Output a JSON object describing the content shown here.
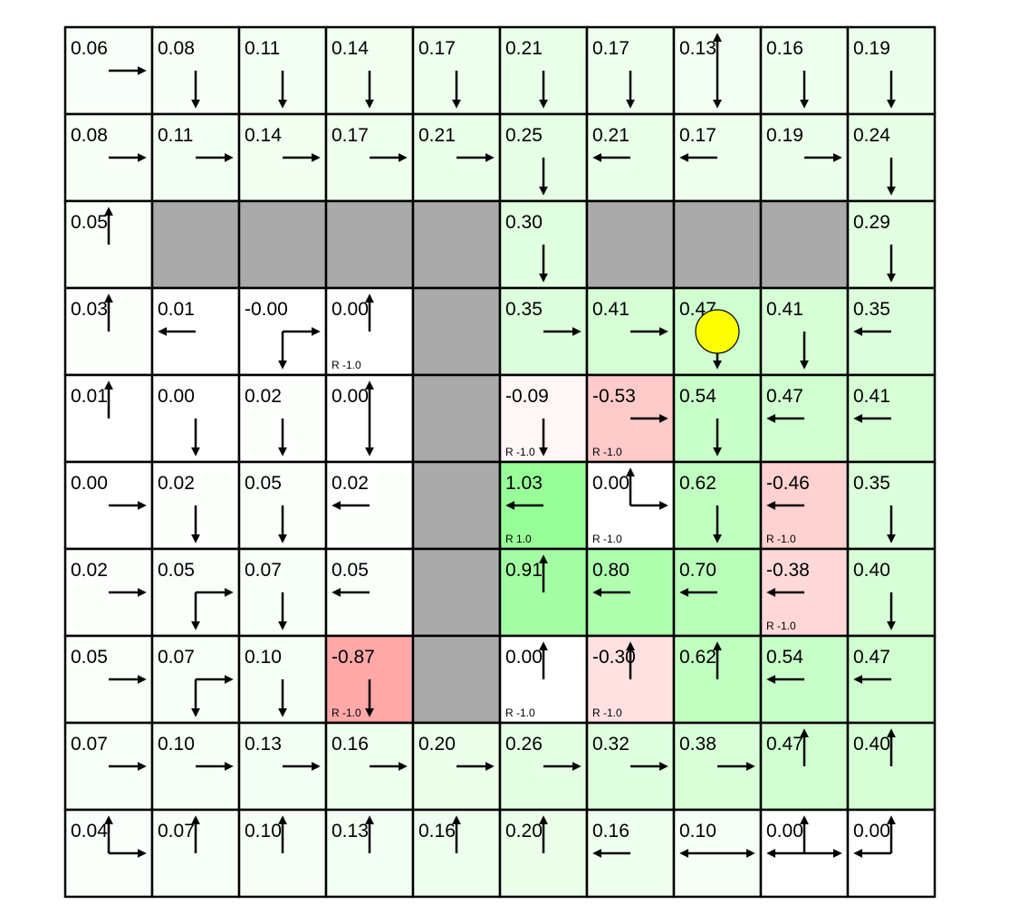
{
  "gridworld": {
    "rows": 10,
    "cols": 10,
    "values": [
      [
        "0.06",
        "0.08",
        "0.11",
        "0.14",
        "0.17",
        "0.21",
        "0.17",
        "0.13",
        "0.16",
        "0.19"
      ],
      [
        "0.08",
        "0.11",
        "0.14",
        "0.17",
        "0.21",
        "0.25",
        "0.21",
        "0.17",
        "0.19",
        "0.24"
      ],
      [
        "0.05",
        null,
        null,
        null,
        null,
        "0.30",
        null,
        null,
        null,
        "0.29"
      ],
      [
        "0.03",
        "0.01",
        "-0.00",
        "0.00",
        null,
        "0.35",
        "0.41",
        "0.47",
        "0.41",
        "0.35"
      ],
      [
        "0.01",
        "0.00",
        "0.02",
        "0.00",
        null,
        "-0.09",
        "-0.53",
        "0.54",
        "0.47",
        "0.41"
      ],
      [
        "0.00",
        "0.02",
        "0.05",
        "0.02",
        null,
        "1.03",
        "0.00",
        "0.62",
        "-0.46",
        "0.35"
      ],
      [
        "0.02",
        "0.05",
        "0.07",
        "0.05",
        null,
        "0.91",
        "0.80",
        "0.70",
        "-0.38",
        "0.40"
      ],
      [
        "0.05",
        "0.07",
        "0.10",
        "-0.87",
        null,
        "0.00",
        "-0.30",
        "0.62",
        "0.54",
        "0.47"
      ],
      [
        "0.07",
        "0.10",
        "0.13",
        "0.16",
        "0.20",
        "0.26",
        "0.32",
        "0.38",
        "0.47",
        "0.40"
      ],
      [
        "0.04",
        "0.07",
        "0.10",
        "0.13",
        "0.16",
        "0.20",
        "0.16",
        "0.10",
        "0.00",
        "0.00"
      ]
    ],
    "policy": [
      [
        "R",
        "D",
        "D",
        "D",
        "D",
        "D",
        "D",
        "UD",
        "D",
        "D"
      ],
      [
        "R",
        "R",
        "R",
        "R",
        "R",
        "D",
        "L",
        "L",
        "R",
        "D"
      ],
      [
        "U",
        "",
        "",
        "",
        "",
        "D",
        "",
        "",
        "",
        "D"
      ],
      [
        "U",
        "L",
        "DR",
        "U",
        "",
        "R",
        "R",
        "D",
        "D",
        "L"
      ],
      [
        "U",
        "D",
        "D",
        "UD",
        "",
        "D",
        "R",
        "D",
        "L",
        "L"
      ],
      [
        "R",
        "D",
        "D",
        "L",
        "",
        "L",
        "UR",
        "D",
        "L",
        "D"
      ],
      [
        "R",
        "DR",
        "D",
        "L",
        "",
        "U",
        "L",
        "L",
        "L",
        "D"
      ],
      [
        "R",
        "DR",
        "D",
        "D",
        "",
        "U",
        "U",
        "U",
        "L",
        "L"
      ],
      [
        "R",
        "R",
        "R",
        "R",
        "R",
        "R",
        "R",
        "R",
        "U",
        "U"
      ],
      [
        "UR",
        "U",
        "U",
        "U",
        "U",
        "U",
        "L",
        "LR",
        "ULR",
        "UL"
      ]
    ],
    "rewards": [
      {
        "row": 3,
        "col": 3,
        "label": "R -1.0"
      },
      {
        "row": 4,
        "col": 5,
        "label": "R -1.0"
      },
      {
        "row": 4,
        "col": 6,
        "label": "R -1.0"
      },
      {
        "row": 5,
        "col": 5,
        "label": "R 1.0"
      },
      {
        "row": 5,
        "col": 6,
        "label": "R -1.0"
      },
      {
        "row": 5,
        "col": 8,
        "label": "R -1.0"
      },
      {
        "row": 6,
        "col": 8,
        "label": "R -1.0"
      },
      {
        "row": 7,
        "col": 3,
        "label": "R -1.0"
      },
      {
        "row": 7,
        "col": 5,
        "label": "R -1.0"
      },
      {
        "row": 7,
        "col": 6,
        "label": "R -1.0"
      }
    ],
    "agent": {
      "row": 3,
      "col": 7,
      "color": "#ffff00"
    },
    "wall_color": "#aaaaaa",
    "positive_color": "#00ff00",
    "negative_color": "#ff0000"
  }
}
